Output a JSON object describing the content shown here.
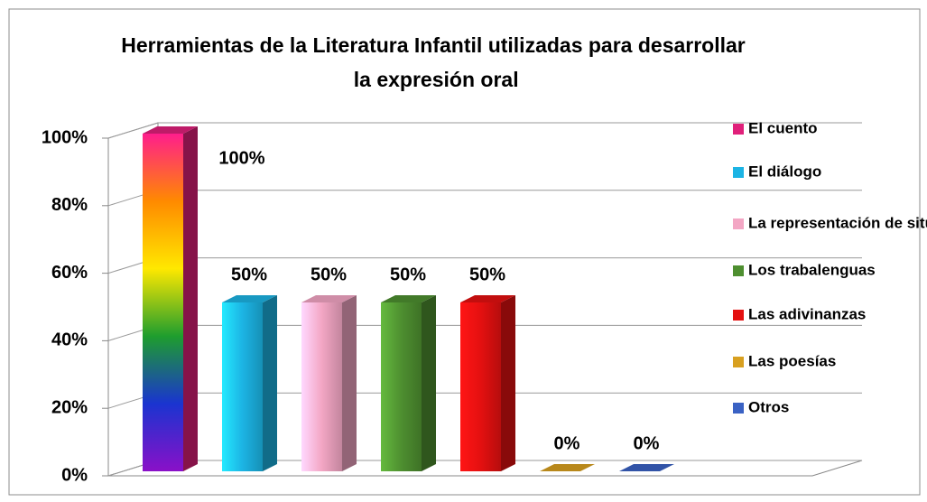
{
  "chart_data": {
    "type": "bar3d",
    "title": "Herramientas de la Literatura Infantil utilizadas para desarrollar la expresión oral",
    "categories": [
      null
    ],
    "series": [
      {
        "name": "El cuento",
        "color": "#e0207a",
        "values": [
          100
        ],
        "value_labels": [
          "100%"
        ]
      },
      {
        "name": "El diálogo",
        "color": "#1cb4e4",
        "values": [
          50
        ],
        "value_labels": [
          "50%"
        ]
      },
      {
        "name": "La representación de situaciones",
        "color": "#f3a6c4",
        "values": [
          50
        ],
        "value_labels": [
          "50%"
        ]
      },
      {
        "name": "Los trabalenguas",
        "color": "#4e8f30",
        "values": [
          50
        ],
        "value_labels": [
          "50%"
        ]
      },
      {
        "name": "Las adivinanzas",
        "color": "#e41010",
        "values": [
          50
        ],
        "value_labels": [
          "50%"
        ]
      },
      {
        "name": "Las poesías",
        "color": "#d8a020",
        "values": [
          0
        ],
        "value_labels": [
          "0%"
        ]
      },
      {
        "name": "Otros",
        "color": "#3a62c4",
        "values": [
          0
        ],
        "value_labels": [
          "0%"
        ]
      }
    ],
    "ylim": [
      0,
      100
    ],
    "yticks": [
      {
        "value": 0,
        "label": "0%"
      },
      {
        "value": 20,
        "label": "20%"
      },
      {
        "value": 40,
        "label": "40%"
      },
      {
        "value": 60,
        "label": "60%"
      },
      {
        "value": 80,
        "label": "80%"
      },
      {
        "value": 100,
        "label": "100%"
      }
    ],
    "grid": true,
    "legend": "right"
  }
}
